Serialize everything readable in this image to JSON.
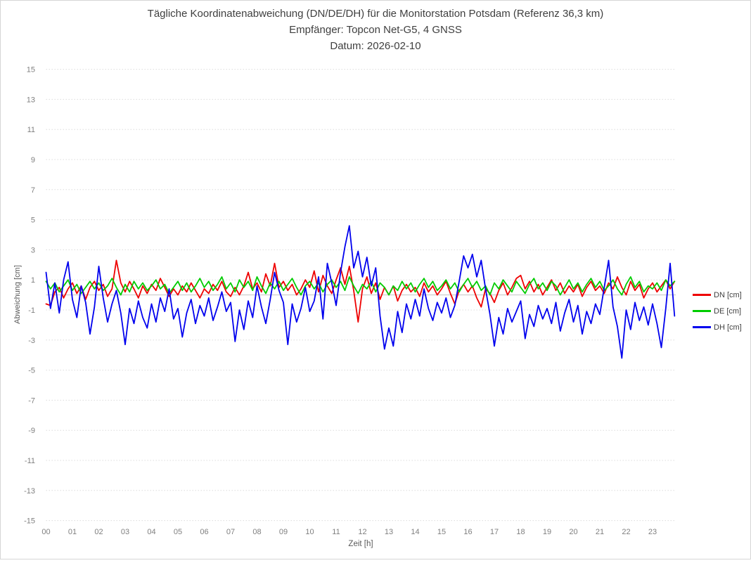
{
  "title": {
    "line1": "Tägliche Koordinatenabweichung (DN/DE/DH) für die Monitorstation Potsdam (Referenz 36,3 km)",
    "line2": "Empfänger: Topcon Net-G5, 4 GNSS",
    "line3": "Datum: 2026-02-10"
  },
  "colors": {
    "dn_line": "#ee0000",
    "de_line": "#00cc00",
    "dh_line": "#0000ee",
    "grid": "#dcdcdc",
    "zero_line": "#c3c3c3",
    "tick_text": "#7f7f7f",
    "title_text": "#3f3f3f",
    "frame_border": "#d6d6d6"
  },
  "chart_data": {
    "type": "line",
    "title": "Tägliche Koordinatenabweichung (DN/DE/DH) für die Monitorstation Potsdam (Referenz 36,3 km)",
    "subtitle": "Empfänger: Topcon Net-G5, 4 GNSS",
    "date_label": "Datum: 2026-02-10",
    "xlabel": "Zeit [h]",
    "ylabel": "Abweichung [cm]",
    "xlim": [
      0,
      24
    ],
    "ylim": [
      -15,
      15
    ],
    "grid": "horizontal dotted lines at odd values, solid line at 0",
    "legend_position": "right-center",
    "x_ticks": [
      "00",
      "01",
      "02",
      "03",
      "04",
      "05",
      "06",
      "07",
      "08",
      "09",
      "10",
      "11",
      "12",
      "13",
      "14",
      "15",
      "16",
      "17",
      "18",
      "19",
      "20",
      "21",
      "22",
      "23"
    ],
    "y_ticks": [
      15,
      13,
      11,
      9,
      7,
      5,
      3,
      1,
      -1,
      -3,
      -5,
      -7,
      -9,
      -11,
      -13,
      -15
    ],
    "x_start_hour": 0,
    "x_step_hours": 0.16667,
    "series": [
      {
        "id": "dn",
        "name": "DN [cm]",
        "color": "#ee0000",
        "values": [
          -0.6,
          -0.7,
          0.2,
          0.5,
          -0.2,
          0.4,
          0.8,
          0.1,
          0.6,
          -0.3,
          0.5,
          0.9,
          0.3,
          0.7,
          -0.1,
          0.4,
          2.3,
          0.8,
          0.2,
          0.9,
          0.4,
          -0.2,
          0.6,
          0.1,
          0.7,
          0.3,
          1.1,
          0.5,
          -0.1,
          0.4,
          0.0,
          0.6,
          0.2,
          0.8,
          0.3,
          -0.2,
          0.4,
          0.1,
          0.7,
          0.3,
          0.9,
          0.2,
          -0.1,
          0.5,
          0.0,
          0.6,
          1.5,
          0.4,
          0.8,
          0.2,
          1.4,
          0.6,
          2.1,
          0.5,
          0.9,
          0.3,
          0.7,
          0.0,
          0.4,
          1.0,
          0.5,
          1.6,
          0.2,
          1.3,
          0.6,
          0.1,
          1.0,
          1.8,
          0.7,
          1.9,
          0.3,
          -1.8,
          0.4,
          1.2,
          0.1,
          0.8,
          -0.3,
          0.5,
          0.0,
          0.6,
          -0.4,
          0.3,
          0.7,
          0.2,
          0.5,
          -0.1,
          0.8,
          0.2,
          0.6,
          0.0,
          0.4,
          0.9,
          0.1,
          -0.6,
          0.3,
          0.7,
          0.2,
          0.6,
          -0.2,
          -0.8,
          0.4,
          0.1,
          -0.5,
          0.3,
          0.8,
          0.0,
          0.5,
          1.1,
          1.3,
          0.4,
          0.9,
          0.2,
          0.7,
          0.0,
          0.5,
          1.0,
          0.3,
          0.8,
          0.1,
          0.6,
          0.2,
          0.7,
          -0.1,
          0.5,
          0.9,
          0.3,
          0.6,
          0.1,
          0.8,
          0.4,
          1.2,
          0.5,
          0.0,
          0.9,
          0.3,
          0.7,
          -0.2,
          0.4,
          0.8,
          0.2,
          0.6,
          1.0,
          0.4,
          0.9
        ]
      },
      {
        "id": "de",
        "name": "DE [cm]",
        "color": "#00cc00",
        "values": [
          0.9,
          0.4,
          0.8,
          0.2,
          0.6,
          1.0,
          0.3,
          0.7,
          0.1,
          0.5,
          0.9,
          0.4,
          0.8,
          0.3,
          0.6,
          1.1,
          0.5,
          0.0,
          0.7,
          0.2,
          0.9,
          0.4,
          0.8,
          0.3,
          0.6,
          1.0,
          0.4,
          0.7,
          0.1,
          0.5,
          0.9,
          0.3,
          0.8,
          0.2,
          0.6,
          1.1,
          0.5,
          0.9,
          0.3,
          0.7,
          1.2,
          0.4,
          0.8,
          0.2,
          1.0,
          0.5,
          0.9,
          0.3,
          1.2,
          0.6,
          0.1,
          0.8,
          0.4,
          0.9,
          0.3,
          0.7,
          1.1,
          0.5,
          0.0,
          0.6,
          0.9,
          0.4,
          0.8,
          0.2,
          0.7,
          1.0,
          0.5,
          0.9,
          0.3,
          1.2,
          0.6,
          0.1,
          0.7,
          0.4,
          0.9,
          0.2,
          0.8,
          0.5,
          0.0,
          0.6,
          0.3,
          0.9,
          0.4,
          0.8,
          0.2,
          0.7,
          1.1,
          0.5,
          0.9,
          0.3,
          0.6,
          1.0,
          0.4,
          0.8,
          0.2,
          0.7,
          1.1,
          0.5,
          0.9,
          0.3,
          0.6,
          0.0,
          0.8,
          0.4,
          1.0,
          0.6,
          0.2,
          0.9,
          0.5,
          0.1,
          0.7,
          1.1,
          0.4,
          0.8,
          0.3,
          0.9,
          0.6,
          0.0,
          0.5,
          1.0,
          0.4,
          0.8,
          0.2,
          0.7,
          1.1,
          0.5,
          0.9,
          0.3,
          0.6,
          1.0,
          0.4,
          0.0,
          0.7,
          1.2,
          0.5,
          0.9,
          0.2,
          0.6,
          0.4,
          0.8,
          0.3,
          1.0,
          0.6,
          0.9
        ]
      },
      {
        "id": "dh",
        "name": "DH [cm]",
        "color": "#0000ee",
        "values": [
          1.5,
          -0.9,
          0.8,
          -1.2,
          1.0,
          2.2,
          -0.3,
          -1.5,
          0.6,
          -0.5,
          -2.6,
          -0.8,
          1.9,
          -0.2,
          -1.8,
          -0.6,
          0.3,
          -1.2,
          -3.3,
          -0.9,
          -1.9,
          -0.4,
          -1.5,
          -2.2,
          -0.6,
          -1.8,
          -0.2,
          -1.1,
          0.4,
          -1.6,
          -0.9,
          -2.8,
          -1.2,
          -0.3,
          -1.9,
          -0.7,
          -1.4,
          -0.2,
          -1.7,
          -0.8,
          0.2,
          -1.1,
          -0.5,
          -3.1,
          -1.0,
          -2.3,
          -0.4,
          -1.5,
          0.6,
          -0.8,
          -1.9,
          -0.3,
          1.5,
          0.3,
          -0.5,
          -3.3,
          -0.6,
          -1.8,
          -0.9,
          0.5,
          -1.1,
          -0.4,
          1.2,
          -1.6,
          2.1,
          0.8,
          -0.7,
          1.5,
          3.2,
          4.6,
          1.8,
          2.9,
          1.2,
          2.5,
          0.6,
          1.8,
          -1.4,
          -3.6,
          -2.2,
          -3.4,
          -1.1,
          -2.5,
          -0.6,
          -1.6,
          -0.3,
          -1.4,
          0.4,
          -0.9,
          -1.7,
          -0.5,
          -1.2,
          -0.2,
          -1.5,
          -0.7,
          0.9,
          2.6,
          1.8,
          2.7,
          1.2,
          2.3,
          0.4,
          -1.3,
          -3.4,
          -1.5,
          -2.6,
          -0.9,
          -1.8,
          -1.1,
          -0.4,
          -2.9,
          -1.3,
          -2.1,
          -0.7,
          -1.6,
          -0.9,
          -1.9,
          -0.5,
          -2.4,
          -1.2,
          -0.3,
          -1.8,
          -0.7,
          -2.6,
          -1.1,
          -1.9,
          -0.6,
          -1.3,
          0.5,
          2.3,
          -0.8,
          -2.1,
          -4.2,
          -1.0,
          -2.3,
          -0.5,
          -1.7,
          -0.8,
          -2.0,
          -0.6,
          -1.9,
          -3.5,
          -0.9,
          2.1,
          -1.4
        ]
      }
    ]
  }
}
